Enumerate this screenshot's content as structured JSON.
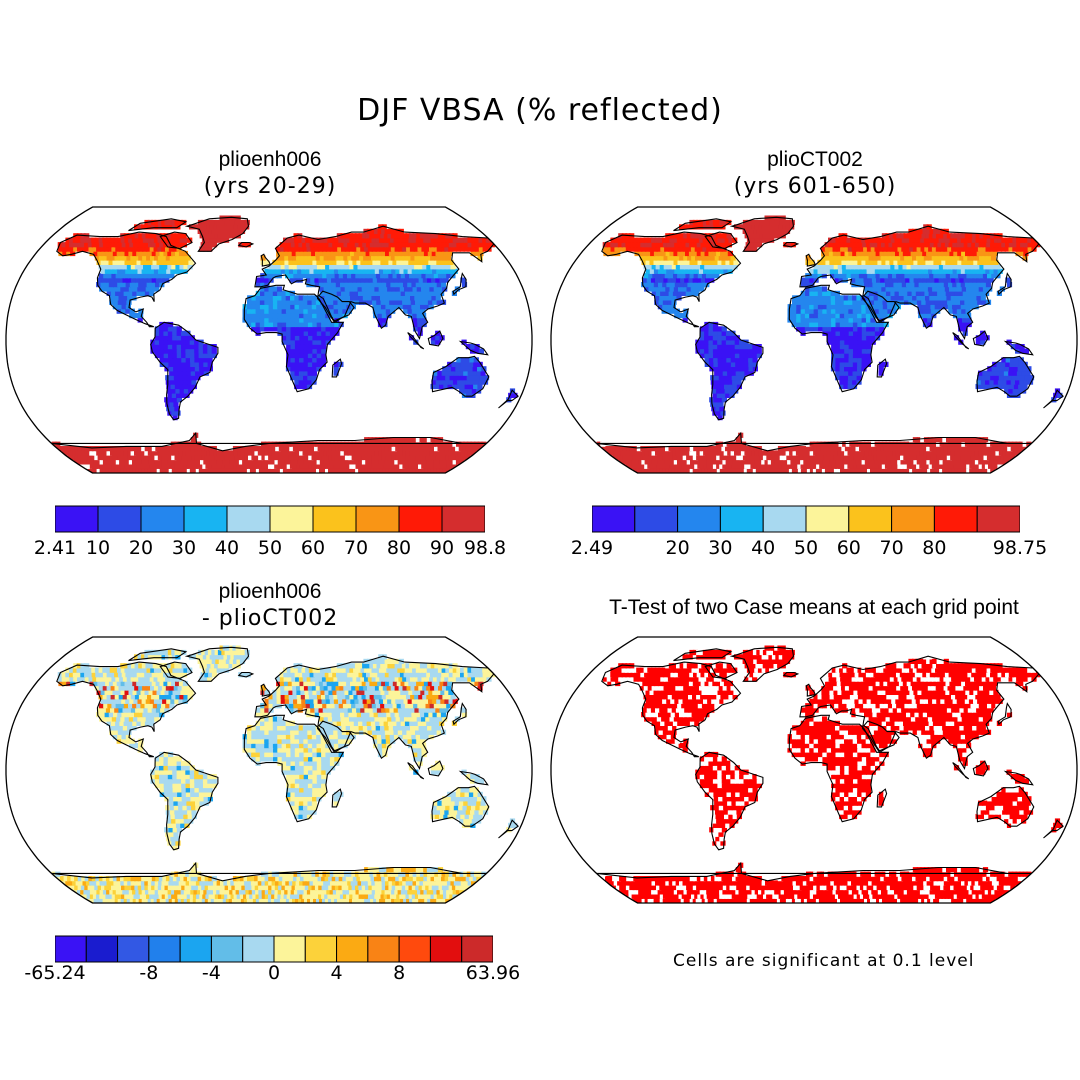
{
  "title": "DJF VBSA (% reflected)",
  "panels": [
    {
      "id": "p1",
      "kind": "value",
      "name": "plioenh006",
      "subtitle": "(yrs 20-29)",
      "colorbar": {
        "colors": [
          "#3a12f5",
          "#2d4be6",
          "#2486ee",
          "#18b4f2",
          "#a8d9f0",
          "#fcf49a",
          "#fbc21c",
          "#f99515",
          "#ff1a06",
          "#d52d2e"
        ],
        "labels": [
          "2.41",
          "10",
          "20",
          "30",
          "40",
          "50",
          "60",
          "70",
          "80",
          "90",
          "98.8"
        ],
        "label_pos": [
          0,
          0.1,
          0.2,
          0.3,
          0.4,
          0.5,
          0.6,
          0.7,
          0.8,
          0.9,
          1.0
        ]
      },
      "theme": "albedo"
    },
    {
      "id": "p2",
      "kind": "value",
      "name": "plioCT002",
      "subtitle": "(yrs 601-650)",
      "colorbar": {
        "colors": [
          "#3a12f5",
          "#2d4be6",
          "#2486ee",
          "#18b4f2",
          "#a8d9f0",
          "#fcf49a",
          "#fbc21c",
          "#f99515",
          "#ff1a06",
          "#d52d2e"
        ],
        "labels": [
          "2.49",
          "20",
          "30",
          "40",
          "50",
          "60",
          "70",
          "80",
          "98.75"
        ],
        "label_pos": [
          0,
          0.2,
          0.3,
          0.4,
          0.5,
          0.6,
          0.7,
          0.8,
          1.0
        ]
      },
      "theme": "albedo"
    },
    {
      "id": "p3",
      "kind": "difference",
      "name": "plioenh006",
      "subtitle": "- plioCT002",
      "colorbar": {
        "colors": [
          "#3a12f5",
          "#1a1ccf",
          "#3258e4",
          "#2180ec",
          "#1ba5f0",
          "#62bde8",
          "#a8d9f0",
          "#fcf49a",
          "#fcd23a",
          "#fbaa13",
          "#f98315",
          "#ff4a0d",
          "#e20e0e",
          "#cc2a2a"
        ],
        "labels": [
          "-65.24",
          "-8",
          "-4",
          "0",
          "4",
          "8",
          "63.96"
        ],
        "label_pos": [
          0,
          0.2143,
          0.3571,
          0.5,
          0.6429,
          0.7857,
          1.0
        ]
      },
      "theme": "diff"
    },
    {
      "id": "p4",
      "kind": "ttest",
      "name": "T-Test of two Case means at each grid point",
      "note": "Cells are significant at 0.1 level",
      "colors": {
        "significant": "#ff0000",
        "not_significant": "#ffffff"
      },
      "theme": "ttest"
    }
  ]
}
